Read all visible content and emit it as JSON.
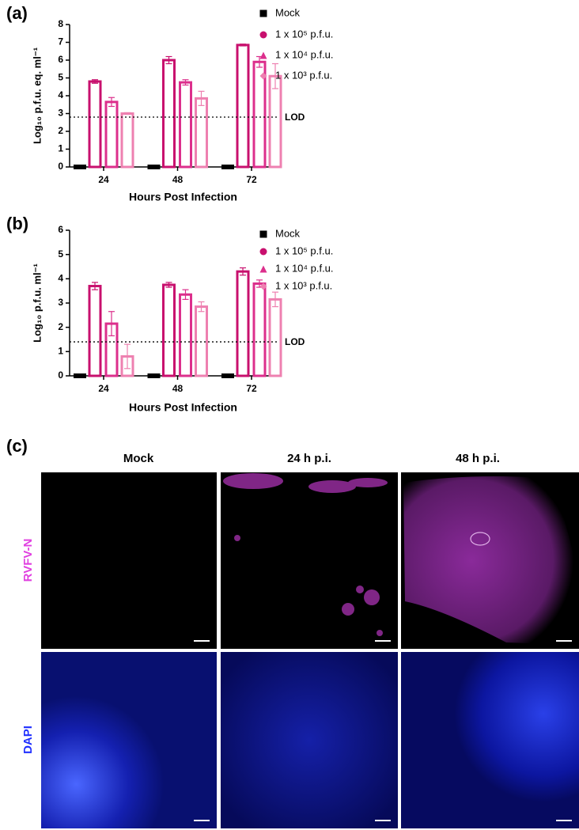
{
  "chart_data": [
    {
      "type": "bar",
      "panel": "(a)",
      "y_label": "Log₁₀ p.f.u. eq. ml⁻¹",
      "x_label": "Hours Post Infection",
      "categories": [
        "24",
        "48",
        "72"
      ],
      "series": [
        {
          "name": "Mock",
          "color": "#000000",
          "marker": "square",
          "values": [
            0,
            0,
            0
          ],
          "errors": [
            0,
            0,
            0
          ]
        },
        {
          "name": "1 x 10⁵ p.f.u.",
          "color": "#c8106e",
          "marker": "circle",
          "values": [
            4.8,
            6.0,
            6.85
          ],
          "errors": [
            0.1,
            0.2,
            0.05
          ]
        },
        {
          "name": "1 x 10⁴ p.f.u.",
          "color": "#dc2f8c",
          "marker": "triangle",
          "values": [
            3.65,
            4.75,
            5.9
          ],
          "errors": [
            0.25,
            0.15,
            0.3
          ]
        },
        {
          "name": "1 x 10³ p.f.u.",
          "color": "#ee80b0",
          "marker": "diamond",
          "values": [
            3.0,
            3.85,
            5.1
          ],
          "errors": [
            0.05,
            0.4,
            0.7
          ]
        }
      ],
      "reference_line": {
        "value": 2.8,
        "label": "LOD"
      },
      "ylim": [
        0,
        8
      ],
      "yticks": [
        0,
        1,
        2,
        3,
        4,
        5,
        6,
        7,
        8
      ]
    },
    {
      "type": "bar",
      "panel": "(b)",
      "y_label": "Log₁₀ p.f.u. ml⁻¹",
      "x_label": "Hours Post Infection",
      "categories": [
        "24",
        "48",
        "72"
      ],
      "series": [
        {
          "name": "Mock",
          "color": "#000000",
          "marker": "square",
          "values": [
            0,
            0,
            0
          ],
          "errors": [
            0,
            0,
            0
          ]
        },
        {
          "name": "1 x 10⁵ p.f.u.",
          "color": "#c8106e",
          "marker": "circle",
          "values": [
            3.7,
            3.75,
            4.3
          ],
          "errors": [
            0.15,
            0.1,
            0.15
          ]
        },
        {
          "name": "1 x 10⁴ p.f.u.",
          "color": "#dc2f8c",
          "marker": "triangle",
          "values": [
            2.15,
            3.35,
            3.8
          ],
          "errors": [
            0.5,
            0.2,
            0.15
          ]
        },
        {
          "name": "1 x 10³ p.f.u.",
          "color": "#ee80b0",
          "marker": "diamond",
          "values": [
            0.8,
            2.85,
            3.15
          ],
          "errors": [
            0.5,
            0.2,
            0.3
          ]
        }
      ],
      "reference_line": {
        "value": 1.4,
        "label": "LOD"
      },
      "ylim": [
        0,
        6
      ],
      "yticks": [
        0,
        1,
        2,
        3,
        4,
        5,
        6
      ]
    }
  ],
  "panel_c": {
    "panel": "(c)",
    "columns": [
      "Mock",
      "24 h p.i.",
      "48 h p.i."
    ],
    "rows": [
      "RVFV-N",
      "DAPI"
    ]
  }
}
